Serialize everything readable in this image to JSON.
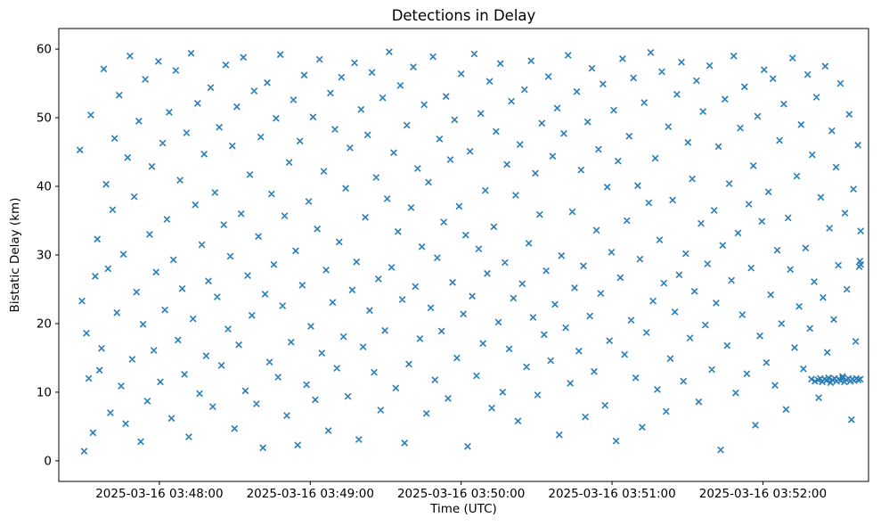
{
  "figure": {
    "background": "#ffffff"
  },
  "chart_data": {
    "type": "scatter",
    "title": "Detections in Delay",
    "xlabel": "Time (UTC)",
    "ylabel": "Bistatic Delay (km)",
    "marker": "x",
    "marker_color": "#1f77b4",
    "x_epoch": "2025-03-16 03:47:20",
    "xlim_seconds": [
      0,
      322
    ],
    "ylim": [
      -3,
      63
    ],
    "y_ticks": [
      0,
      10,
      20,
      30,
      40,
      50,
      60
    ],
    "x_ticks": [
      {
        "t": 40,
        "label": "2025-03-16 03:48:00"
      },
      {
        "t": 100,
        "label": "2025-03-16 03:49:00"
      },
      {
        "t": 160,
        "label": "2025-03-16 03:50:00"
      },
      {
        "t": 220,
        "label": "2025-03-16 03:51:00"
      },
      {
        "t": 280,
        "label": "2025-03-16 03:52:00"
      }
    ],
    "points": [
      [
        8.4,
        45.3
      ],
      [
        9.2,
        23.3
      ],
      [
        10.1,
        1.4
      ],
      [
        11.0,
        18.6
      ],
      [
        11.9,
        12.0
      ],
      [
        12.7,
        50.4
      ],
      [
        13.6,
        4.1
      ],
      [
        14.5,
        26.9
      ],
      [
        15.3,
        32.3
      ],
      [
        16.2,
        13.2
      ],
      [
        17.0,
        16.4
      ],
      [
        17.9,
        57.1
      ],
      [
        18.8,
        40.3
      ],
      [
        19.6,
        28.0
      ],
      [
        20.5,
        7.0
      ],
      [
        21.4,
        36.6
      ],
      [
        22.2,
        47.0
      ],
      [
        23.1,
        21.6
      ],
      [
        24.0,
        53.3
      ],
      [
        24.8,
        10.9
      ],
      [
        25.7,
        30.1
      ],
      [
        26.6,
        5.4
      ],
      [
        27.4,
        44.2
      ],
      [
        28.3,
        59.0
      ],
      [
        29.2,
        14.8
      ],
      [
        30.0,
        38.5
      ],
      [
        30.9,
        24.6
      ],
      [
        31.8,
        49.5
      ],
      [
        32.6,
        2.8
      ],
      [
        33.5,
        19.9
      ],
      [
        34.4,
        55.6
      ],
      [
        35.2,
        8.7
      ],
      [
        36.1,
        33.0
      ],
      [
        37.0,
        42.9
      ],
      [
        37.8,
        16.1
      ],
      [
        38.7,
        27.5
      ],
      [
        39.6,
        58.2
      ],
      [
        40.4,
        11.5
      ],
      [
        41.3,
        46.3
      ],
      [
        42.2,
        22.0
      ],
      [
        43.0,
        35.2
      ],
      [
        43.9,
        50.8
      ],
      [
        44.8,
        6.2
      ],
      [
        45.6,
        29.3
      ],
      [
        46.5,
        56.9
      ],
      [
        47.4,
        17.6
      ],
      [
        48.2,
        40.9
      ],
      [
        49.1,
        25.1
      ],
      [
        50.0,
        12.6
      ],
      [
        50.8,
        47.8
      ],
      [
        51.7,
        3.5
      ],
      [
        52.6,
        59.4
      ],
      [
        53.4,
        20.7
      ],
      [
        54.3,
        37.3
      ],
      [
        55.2,
        52.1
      ],
      [
        56.0,
        9.8
      ],
      [
        56.9,
        31.5
      ],
      [
        57.8,
        44.7
      ],
      [
        58.6,
        15.3
      ],
      [
        59.5,
        26.2
      ],
      [
        60.4,
        54.4
      ],
      [
        61.2,
        7.9
      ],
      [
        62.1,
        39.1
      ],
      [
        63.0,
        23.9
      ],
      [
        63.8,
        48.6
      ],
      [
        64.7,
        13.9
      ],
      [
        65.6,
        34.4
      ],
      [
        66.4,
        57.7
      ],
      [
        67.3,
        19.2
      ],
      [
        68.2,
        29.8
      ],
      [
        69.0,
        45.9
      ],
      [
        69.9,
        4.7
      ],
      [
        70.8,
        51.6
      ],
      [
        71.6,
        16.9
      ],
      [
        72.5,
        36.0
      ],
      [
        73.4,
        58.8
      ],
      [
        74.2,
        10.2
      ],
      [
        75.1,
        27.0
      ],
      [
        76.0,
        41.7
      ],
      [
        76.8,
        21.2
      ],
      [
        77.7,
        53.9
      ],
      [
        78.6,
        8.3
      ],
      [
        79.4,
        32.7
      ],
      [
        80.3,
        47.2
      ],
      [
        81.2,
        1.9
      ],
      [
        82.0,
        24.3
      ],
      [
        82.9,
        55.1
      ],
      [
        83.8,
        14.4
      ],
      [
        84.6,
        38.9
      ],
      [
        85.5,
        28.6
      ],
      [
        86.4,
        49.9
      ],
      [
        87.2,
        12.2
      ],
      [
        88.1,
        59.2
      ],
      [
        89.0,
        22.6
      ],
      [
        89.8,
        35.7
      ],
      [
        90.7,
        6.6
      ],
      [
        91.6,
        43.5
      ],
      [
        92.4,
        17.3
      ],
      [
        93.3,
        52.6
      ],
      [
        94.2,
        30.6
      ],
      [
        95.0,
        2.3
      ],
      [
        95.9,
        46.6
      ],
      [
        96.8,
        25.6
      ],
      [
        97.6,
        56.2
      ],
      [
        98.5,
        11.1
      ],
      [
        99.4,
        37.8
      ],
      [
        100.2,
        19.6
      ],
      [
        101.1,
        50.1
      ],
      [
        102.0,
        8.9
      ],
      [
        102.8,
        33.8
      ],
      [
        103.7,
        58.5
      ],
      [
        104.6,
        15.7
      ],
      [
        105.4,
        42.2
      ],
      [
        106.3,
        27.8
      ],
      [
        107.2,
        4.4
      ],
      [
        108.0,
        53.6
      ],
      [
        108.9,
        23.1
      ],
      [
        109.8,
        48.3
      ],
      [
        110.6,
        13.5
      ],
      [
        111.5,
        31.9
      ],
      [
        112.4,
        55.9
      ],
      [
        113.2,
        18.1
      ],
      [
        114.1,
        39.7
      ],
      [
        115.0,
        9.4
      ],
      [
        115.8,
        45.6
      ],
      [
        116.7,
        24.9
      ],
      [
        117.6,
        58.0
      ],
      [
        118.4,
        29.0
      ],
      [
        119.3,
        3.1
      ],
      [
        120.2,
        51.2
      ],
      [
        121.0,
        16.6
      ],
      [
        121.9,
        35.5
      ],
      [
        122.8,
        47.5
      ],
      [
        123.6,
        21.9
      ],
      [
        124.5,
        56.6
      ],
      [
        125.4,
        12.9
      ],
      [
        126.2,
        41.3
      ],
      [
        127.1,
        26.5
      ],
      [
        128.0,
        7.4
      ],
      [
        128.8,
        52.9
      ],
      [
        129.7,
        19.0
      ],
      [
        130.6,
        38.2
      ],
      [
        131.4,
        59.6
      ],
      [
        132.3,
        28.2
      ],
      [
        133.2,
        44.9
      ],
      [
        134.0,
        10.6
      ],
      [
        134.9,
        33.4
      ],
      [
        135.8,
        54.7
      ],
      [
        136.6,
        23.5
      ],
      [
        137.5,
        2.6
      ],
      [
        138.4,
        48.9
      ],
      [
        139.2,
        14.1
      ],
      [
        140.1,
        36.9
      ],
      [
        141.0,
        57.4
      ],
      [
        141.8,
        25.4
      ],
      [
        142.7,
        42.6
      ],
      [
        143.6,
        17.8
      ],
      [
        144.4,
        31.2
      ],
      [
        145.3,
        51.9
      ],
      [
        146.2,
        6.9
      ],
      [
        147.0,
        40.6
      ],
      [
        147.9,
        22.3
      ],
      [
        148.8,
        58.9
      ],
      [
        149.6,
        11.8
      ],
      [
        150.5,
        29.6
      ],
      [
        151.4,
        46.9
      ],
      [
        152.2,
        18.9
      ],
      [
        153.1,
        34.8
      ],
      [
        154.0,
        53.1
      ],
      [
        154.8,
        9.1
      ],
      [
        155.7,
        43.9
      ],
      [
        156.6,
        26.0
      ],
      [
        157.4,
        49.7
      ],
      [
        158.3,
        15.0
      ],
      [
        159.2,
        37.1
      ],
      [
        160.0,
        56.4
      ],
      [
        160.9,
        21.4
      ],
      [
        161.8,
        32.9
      ],
      [
        162.6,
        2.1
      ],
      [
        163.5,
        45.1
      ],
      [
        164.4,
        24.0
      ],
      [
        165.2,
        59.3
      ],
      [
        166.1,
        12.4
      ],
      [
        167.0,
        30.9
      ],
      [
        167.8,
        50.6
      ],
      [
        168.7,
        17.1
      ],
      [
        169.6,
        39.4
      ],
      [
        170.4,
        27.3
      ],
      [
        171.3,
        55.3
      ],
      [
        172.2,
        7.7
      ],
      [
        173.0,
        34.1
      ],
      [
        173.9,
        48.0
      ],
      [
        174.8,
        20.2
      ],
      [
        175.6,
        57.9
      ],
      [
        176.5,
        10.0
      ],
      [
        177.4,
        28.9
      ],
      [
        178.2,
        43.2
      ],
      [
        179.1,
        16.3
      ],
      [
        180.0,
        52.4
      ],
      [
        180.8,
        23.7
      ],
      [
        181.7,
        38.7
      ],
      [
        182.6,
        5.8
      ],
      [
        183.4,
        46.1
      ],
      [
        184.3,
        25.8
      ],
      [
        185.2,
        54.1
      ],
      [
        186.0,
        13.7
      ],
      [
        186.9,
        31.7
      ],
      [
        187.8,
        58.3
      ],
      [
        188.6,
        20.9
      ],
      [
        189.5,
        41.9
      ],
      [
        190.4,
        9.6
      ],
      [
        191.2,
        35.9
      ],
      [
        192.1,
        49.2
      ],
      [
        193.0,
        18.4
      ],
      [
        193.8,
        27.7
      ],
      [
        194.7,
        56.0
      ],
      [
        195.6,
        14.6
      ],
      [
        196.4,
        44.4
      ],
      [
        197.3,
        22.8
      ],
      [
        198.2,
        51.4
      ],
      [
        199.0,
        3.8
      ],
      [
        199.9,
        29.9
      ],
      [
        200.8,
        47.7
      ],
      [
        201.6,
        19.4
      ],
      [
        202.5,
        59.1
      ],
      [
        203.4,
        11.3
      ],
      [
        204.2,
        36.3
      ],
      [
        205.1,
        25.2
      ],
      [
        206.0,
        53.8
      ],
      [
        206.8,
        16.0
      ],
      [
        207.7,
        42.4
      ],
      [
        208.6,
        28.4
      ],
      [
        209.4,
        6.4
      ],
      [
        210.3,
        49.4
      ],
      [
        211.2,
        21.1
      ],
      [
        212.0,
        57.2
      ],
      [
        212.9,
        13.0
      ],
      [
        213.8,
        33.6
      ],
      [
        214.6,
        45.4
      ],
      [
        215.5,
        24.4
      ],
      [
        216.4,
        54.9
      ],
      [
        217.2,
        8.1
      ],
      [
        218.1,
        39.9
      ],
      [
        219.0,
        17.5
      ],
      [
        219.8,
        30.4
      ],
      [
        220.7,
        51.1
      ],
      [
        221.6,
        2.9
      ],
      [
        222.4,
        43.7
      ],
      [
        223.3,
        26.7
      ],
      [
        224.2,
        58.6
      ],
      [
        225.0,
        15.5
      ],
      [
        225.9,
        35.0
      ],
      [
        226.8,
        47.3
      ],
      [
        227.6,
        20.5
      ],
      [
        228.5,
        55.8
      ],
      [
        229.4,
        12.1
      ],
      [
        230.2,
        40.1
      ],
      [
        231.1,
        29.4
      ],
      [
        232.0,
        4.9
      ],
      [
        232.8,
        52.2
      ],
      [
        233.7,
        18.7
      ],
      [
        234.6,
        37.6
      ],
      [
        235.4,
        59.5
      ],
      [
        236.3,
        23.3
      ],
      [
        237.2,
        44.1
      ],
      [
        238.0,
        10.4
      ],
      [
        238.9,
        32.2
      ],
      [
        239.8,
        56.7
      ],
      [
        240.6,
        25.9
      ],
      [
        241.5,
        7.2
      ],
      [
        242.4,
        48.7
      ],
      [
        243.2,
        14.9
      ],
      [
        244.1,
        38.0
      ],
      [
        245.0,
        21.7
      ],
      [
        245.8,
        53.4
      ],
      [
        246.7,
        27.1
      ],
      [
        247.6,
        58.1
      ],
      [
        248.4,
        11.6
      ],
      [
        249.3,
        30.2
      ],
      [
        250.2,
        46.4
      ],
      [
        251.0,
        17.9
      ],
      [
        251.9,
        41.1
      ],
      [
        252.8,
        24.7
      ],
      [
        253.6,
        55.4
      ],
      [
        254.5,
        8.6
      ],
      [
        255.4,
        34.6
      ],
      [
        256.2,
        50.9
      ],
      [
        257.1,
        19.8
      ],
      [
        258.0,
        28.7
      ],
      [
        258.8,
        57.6
      ],
      [
        259.7,
        13.3
      ],
      [
        260.6,
        36.5
      ],
      [
        261.4,
        23.0
      ],
      [
        262.3,
        45.8
      ],
      [
        263.2,
        1.6
      ],
      [
        264.0,
        31.4
      ],
      [
        264.9,
        52.7
      ],
      [
        265.8,
        16.8
      ],
      [
        266.6,
        40.4
      ],
      [
        267.5,
        26.3
      ],
      [
        268.4,
        59.0
      ],
      [
        269.2,
        9.9
      ],
      [
        270.1,
        33.2
      ],
      [
        271.0,
        48.5
      ],
      [
        271.8,
        21.3
      ],
      [
        272.7,
        54.5
      ],
      [
        273.6,
        12.7
      ],
      [
        274.4,
        37.4
      ],
      [
        275.3,
        28.1
      ],
      [
        276.2,
        43.0
      ],
      [
        277.0,
        5.2
      ],
      [
        277.9,
        50.2
      ],
      [
        278.8,
        18.2
      ],
      [
        279.6,
        34.9
      ],
      [
        280.5,
        57.0
      ],
      [
        281.4,
        14.3
      ],
      [
        282.2,
        39.2
      ],
      [
        283.1,
        24.2
      ],
      [
        284.0,
        55.7
      ],
      [
        284.8,
        11.0
      ],
      [
        285.7,
        30.7
      ],
      [
        286.6,
        46.7
      ],
      [
        287.4,
        20.0
      ],
      [
        288.3,
        52.0
      ],
      [
        289.2,
        7.5
      ],
      [
        290.0,
        35.4
      ],
      [
        290.9,
        27.9
      ],
      [
        291.8,
        58.7
      ],
      [
        292.6,
        16.5
      ],
      [
        293.5,
        41.5
      ],
      [
        294.4,
        22.5
      ],
      [
        295.2,
        49.0
      ],
      [
        296.1,
        13.4
      ],
      [
        297.0,
        31.0
      ],
      [
        297.8,
        56.3
      ],
      [
        298.7,
        19.3
      ],
      [
        299.6,
        44.6
      ],
      [
        300.4,
        26.1
      ],
      [
        301.3,
        53.0
      ],
      [
        302.2,
        9.2
      ],
      [
        303.0,
        38.4
      ],
      [
        303.9,
        23.8
      ],
      [
        304.8,
        57.5
      ],
      [
        305.6,
        15.8
      ],
      [
        306.5,
        33.9
      ],
      [
        307.4,
        48.1
      ],
      [
        308.2,
        20.6
      ],
      [
        309.1,
        42.8
      ],
      [
        310.0,
        28.5
      ],
      [
        310.8,
        55.0
      ],
      [
        311.7,
        12.3
      ],
      [
        312.6,
        36.1
      ],
      [
        313.4,
        25.0
      ],
      [
        314.3,
        50.5
      ],
      [
        315.2,
        6.0
      ],
      [
        316.0,
        39.6
      ],
      [
        316.9,
        17.4
      ],
      [
        317.8,
        46.0
      ],
      [
        318.6,
        29.1
      ],
      [
        318.9,
        33.5
      ],
      [
        299.3,
        11.9
      ],
      [
        300.7,
        11.6
      ],
      [
        301.9,
        11.8
      ],
      [
        302.8,
        12.0
      ],
      [
        303.6,
        11.5
      ],
      [
        304.5,
        11.9
      ],
      [
        305.3,
        11.7
      ],
      [
        306.1,
        12.1
      ],
      [
        306.9,
        11.4
      ],
      [
        307.7,
        11.8
      ],
      [
        308.5,
        12.0
      ],
      [
        309.3,
        11.6
      ],
      [
        310.1,
        11.9
      ],
      [
        310.9,
        11.7
      ],
      [
        311.7,
        12.1
      ],
      [
        312.4,
        11.5
      ],
      [
        313.2,
        11.8
      ],
      [
        314.0,
        12.0
      ],
      [
        314.8,
        11.6
      ],
      [
        315.6,
        11.9
      ],
      [
        316.3,
        11.7
      ],
      [
        317.1,
        12.0
      ],
      [
        317.9,
        11.8
      ],
      [
        318.7,
        11.9
      ],
      [
        318.3,
        28.3
      ],
      [
        318.9,
        28.6
      ]
    ]
  }
}
